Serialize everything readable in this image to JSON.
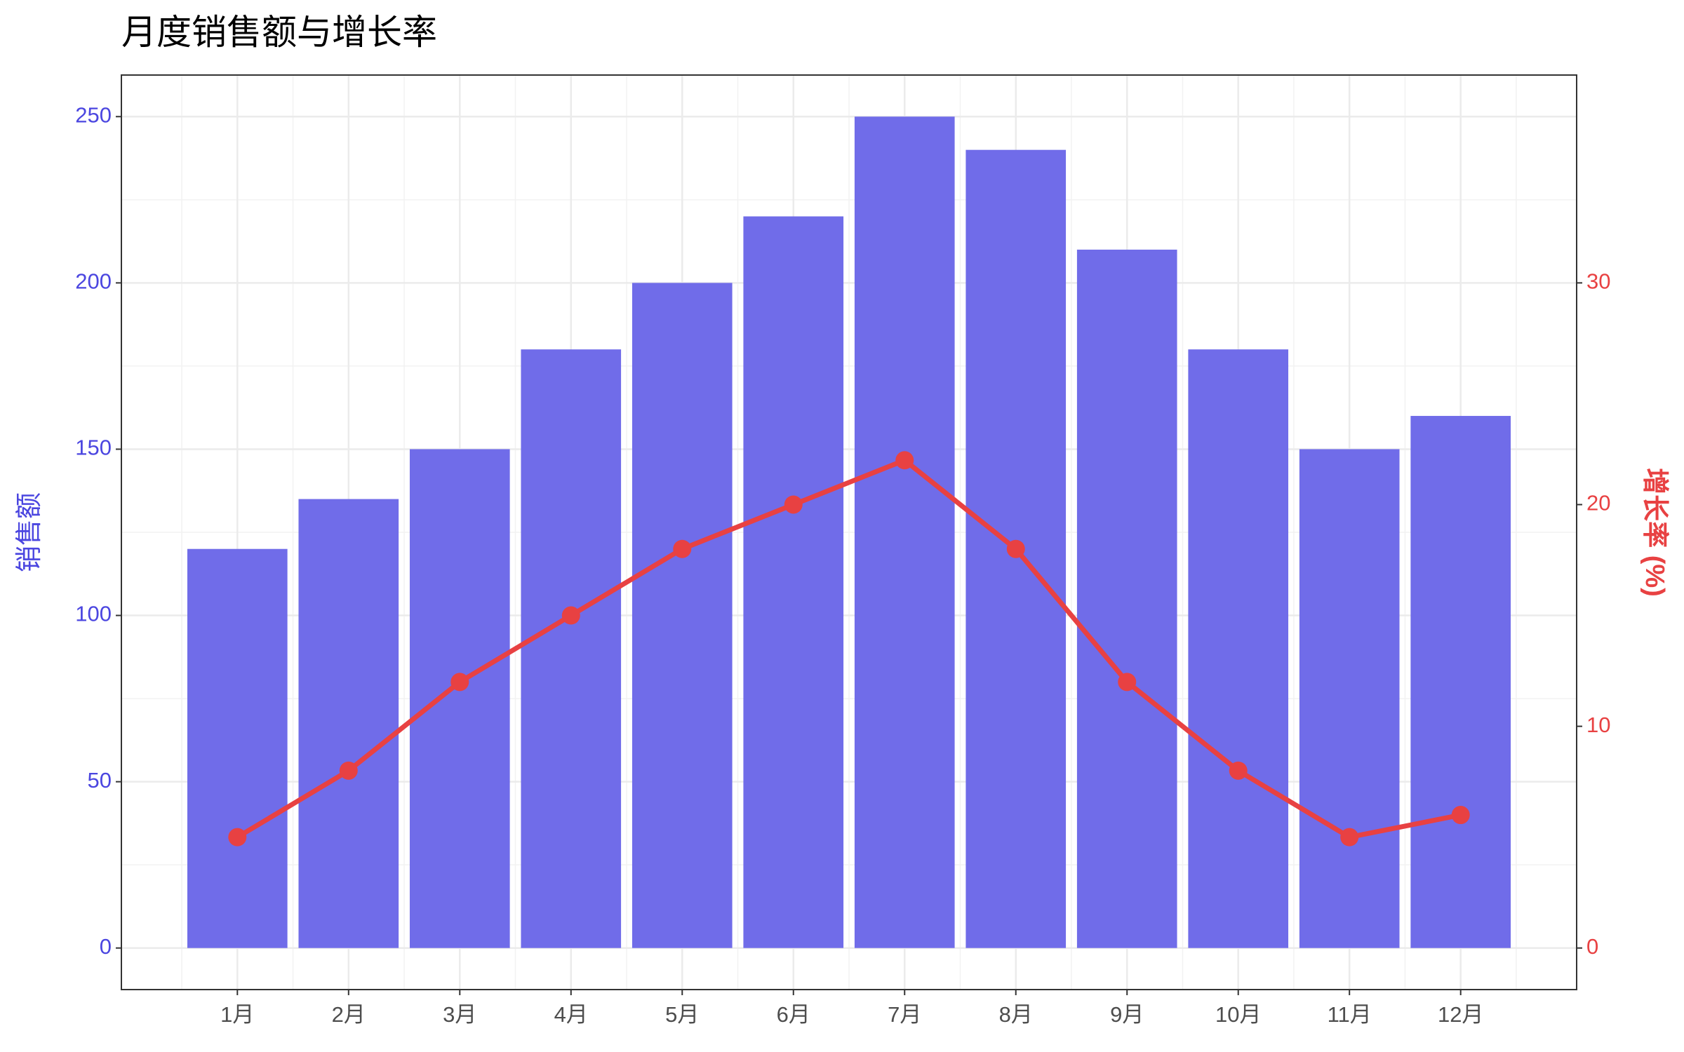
{
  "chart_data": {
    "type": "bar",
    "title": "月度销售额与增长率",
    "ylabel": "销售额",
    "y2label": "增长率 (%)",
    "categories": [
      "1月",
      "2月",
      "3月",
      "4月",
      "5月",
      "6月",
      "7月",
      "8月",
      "9月",
      "10月",
      "11月",
      "12月"
    ],
    "series": [
      {
        "type": "bar",
        "color": "#706ce9",
        "values": [
          120,
          135,
          150,
          180,
          200,
          220,
          250,
          240,
          210,
          180,
          150,
          160
        ]
      },
      {
        "type": "line",
        "color": "#e84142",
        "axis": "y2",
        "values": [
          5,
          8,
          12,
          15,
          18,
          20,
          22,
          18,
          12,
          8,
          5,
          6
        ]
      }
    ],
    "ylim": [
      -12.5,
      262.5
    ],
    "yticks": [
      0,
      50,
      100,
      150,
      200,
      250
    ],
    "y2lim": [
      -1.875,
      39.375
    ],
    "y2ticks": [
      0,
      10,
      20,
      30
    ],
    "ycolor": "#4b46e0",
    "y2color": "#e84142",
    "grid": true
  }
}
